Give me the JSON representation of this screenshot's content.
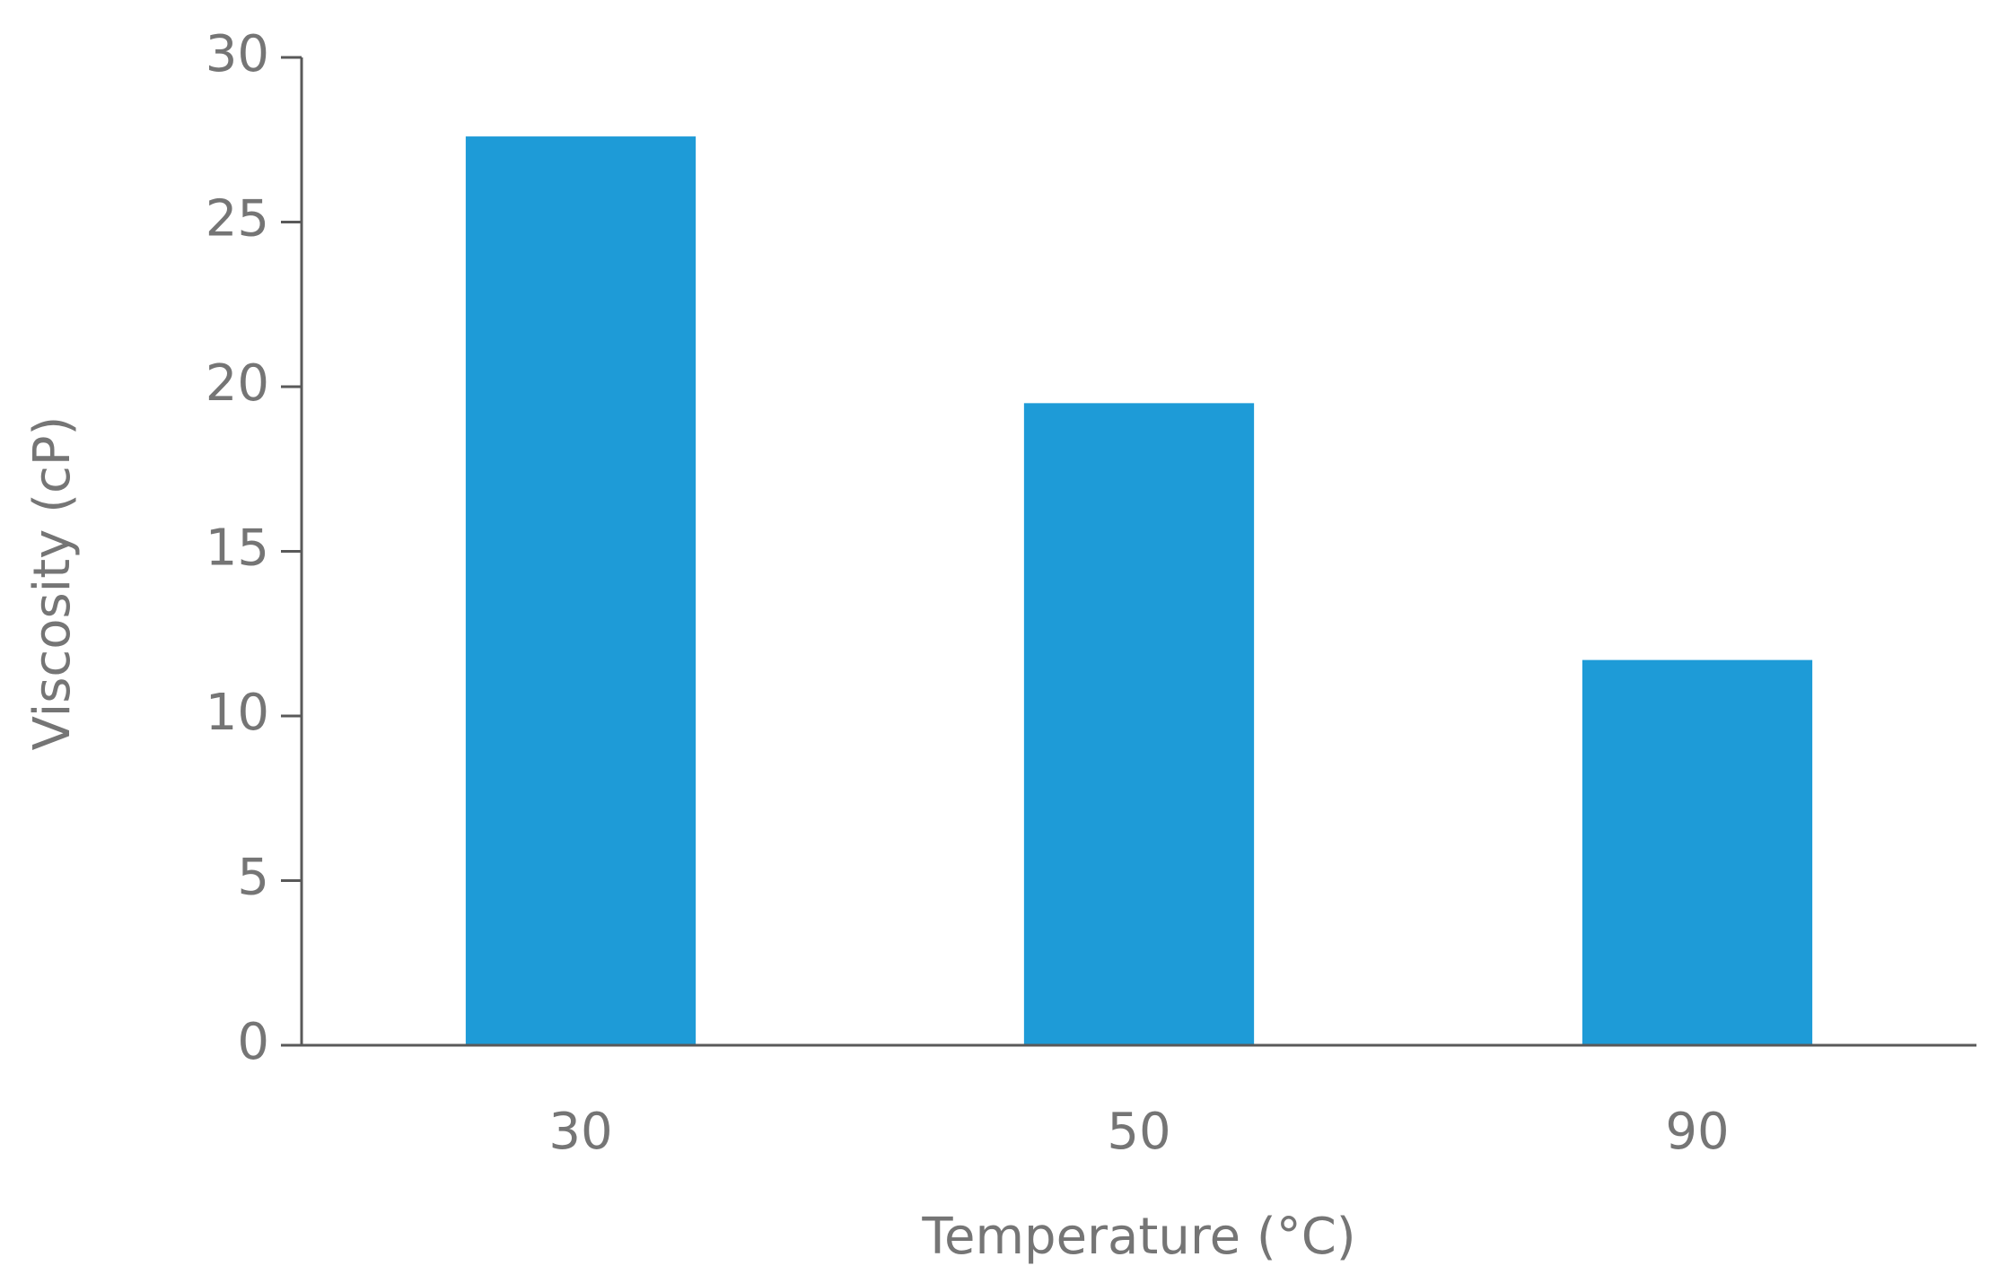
{
  "chart_data": {
    "type": "bar",
    "x_label": "Temperature (°C)",
    "y_label": "Viscosity (cP)",
    "categories": [
      "30",
      "50",
      "90"
    ],
    "values": [
      27.6,
      19.5,
      11.7
    ],
    "color": "#1e9bd7",
    "ylim": [
      0,
      30
    ],
    "yticks": [
      0,
      5,
      10,
      15,
      20,
      25,
      30
    ],
    "grid": false
  }
}
